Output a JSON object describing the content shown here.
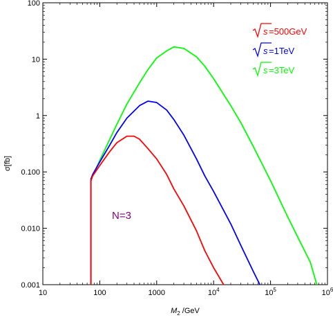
{
  "chart_data": {
    "type": "line",
    "xscale": "log",
    "yscale": "log",
    "xlim": [
      10,
      1000000
    ],
    "ylim": [
      0.001,
      100
    ],
    "xlabel_main": "M",
    "xlabel_sub": "2",
    "xlabel_unit": " /GeV",
    "ylabel": "σ[fb]",
    "x_ticks": [
      {
        "value": 10,
        "label": "10"
      },
      {
        "value": 100,
        "label": "100"
      },
      {
        "value": 1000,
        "label": "1000"
      },
      {
        "value": 10000,
        "label": "10",
        "exp": "4"
      },
      {
        "value": 100000,
        "label": "10",
        "exp": "5"
      },
      {
        "value": 1000000,
        "label": "10",
        "exp": "6"
      }
    ],
    "y_ticks": [
      {
        "value": 0.001,
        "label": "0.001"
      },
      {
        "value": 0.01,
        "label": "0.010"
      },
      {
        "value": 0.1,
        "label": "0.100"
      },
      {
        "value": 1,
        "label": "1"
      },
      {
        "value": 10,
        "label": "10"
      },
      {
        "value": 100,
        "label": "100"
      }
    ],
    "series": [
      {
        "sqrt": "s",
        "energy_label": " =500GeV",
        "color": "#ff0000",
        "points": [
          [
            70,
            0.001
          ],
          [
            70,
            0.07
          ],
          [
            75,
            0.085
          ],
          [
            100,
            0.13
          ],
          [
            150,
            0.23
          ],
          [
            200,
            0.33
          ],
          [
            300,
            0.43
          ],
          [
            400,
            0.43
          ],
          [
            500,
            0.38
          ],
          [
            700,
            0.26
          ],
          [
            1000,
            0.17
          ],
          [
            1500,
            0.09
          ],
          [
            2000,
            0.05
          ],
          [
            3000,
            0.025
          ],
          [
            5000,
            0.009
          ],
          [
            7000,
            0.004
          ],
          [
            10000,
            0.002
          ],
          [
            15000,
            0.001
          ]
        ]
      },
      {
        "sqrt": "s",
        "energy_label": " =1TeV",
        "color": "#0000ff",
        "points": [
          [
            70,
            0.001
          ],
          [
            70,
            0.075
          ],
          [
            75,
            0.09
          ],
          [
            100,
            0.15
          ],
          [
            150,
            0.3
          ],
          [
            200,
            0.5
          ],
          [
            300,
            0.9
          ],
          [
            500,
            1.5
          ],
          [
            700,
            1.8
          ],
          [
            1000,
            1.7
          ],
          [
            1500,
            1.25
          ],
          [
            2000,
            0.85
          ],
          [
            3000,
            0.45
          ],
          [
            5000,
            0.17
          ],
          [
            7000,
            0.085
          ],
          [
            10000,
            0.045
          ],
          [
            20000,
            0.012
          ],
          [
            30000,
            0.005
          ],
          [
            50000,
            0.0017
          ],
          [
            65000,
            0.001
          ]
        ]
      },
      {
        "sqrt": "s",
        "energy_label": " =3TeV",
        "color": "#00ff00",
        "points": [
          [
            70,
            0.001
          ],
          [
            70,
            0.07
          ],
          [
            75,
            0.085
          ],
          [
            100,
            0.16
          ],
          [
            200,
            0.7
          ],
          [
            300,
            1.6
          ],
          [
            500,
            3.8
          ],
          [
            700,
            6.5
          ],
          [
            1000,
            10.5
          ],
          [
            1500,
            14
          ],
          [
            2000,
            16.5
          ],
          [
            3000,
            15.5
          ],
          [
            5000,
            11
          ],
          [
            7000,
            7.5
          ],
          [
            10000,
            4.5
          ],
          [
            20000,
            1.5
          ],
          [
            30000,
            0.75
          ],
          [
            50000,
            0.28
          ],
          [
            100000,
            0.07
          ],
          [
            200000,
            0.016
          ],
          [
            300000,
            0.007
          ],
          [
            500000,
            0.0025
          ],
          [
            650000,
            0.001
          ]
        ]
      }
    ],
    "annotation": {
      "text": "N=3",
      "color": "#800080"
    }
  }
}
